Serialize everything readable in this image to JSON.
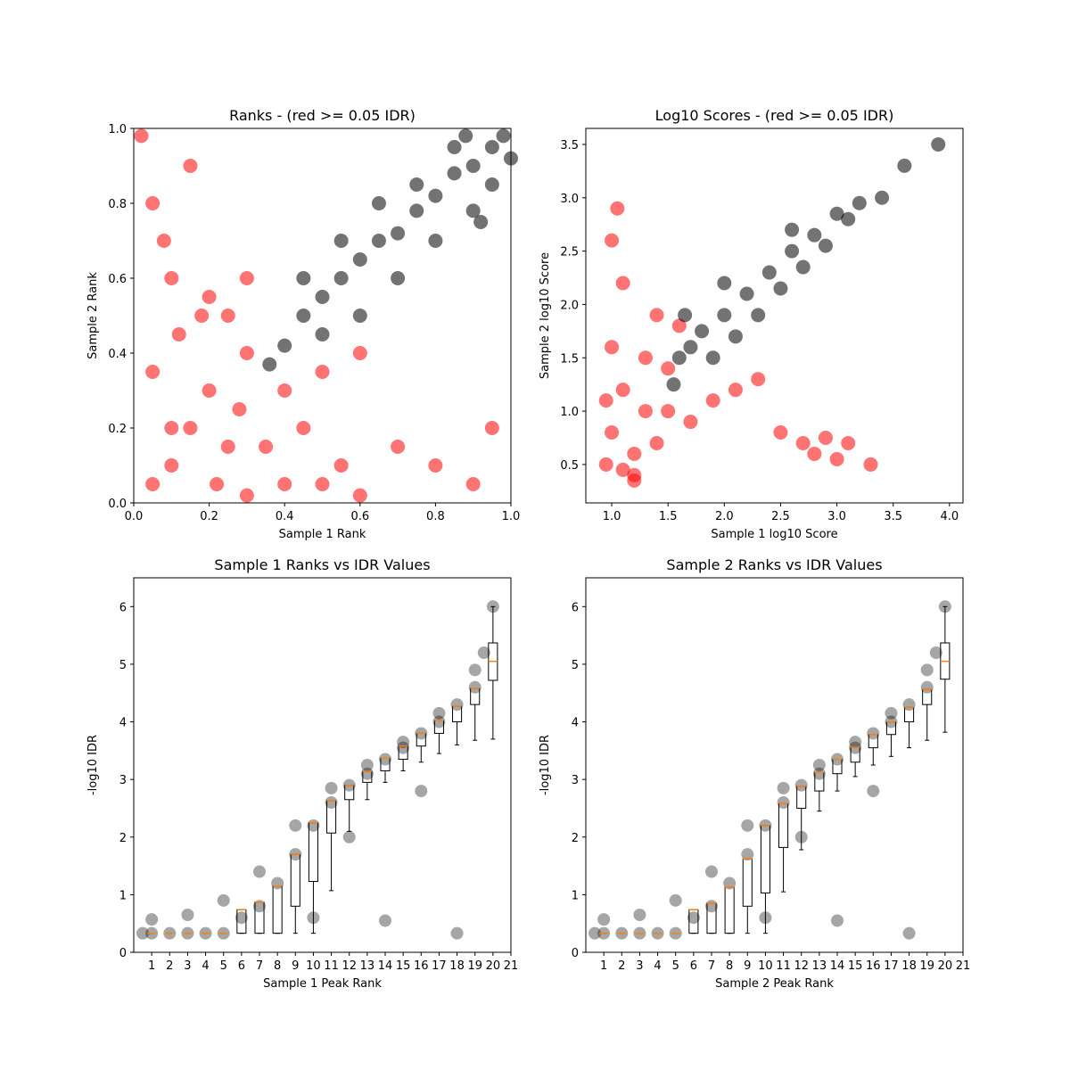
{
  "chart_data": [
    {
      "type": "scatter",
      "title": "Ranks - (red >= 0.05 IDR)",
      "x_label": "Sample 1 Rank",
      "y_label": "Sample 2 Rank",
      "xlim": [
        0,
        1
      ],
      "ylim": [
        0,
        1
      ],
      "xticks": [
        {
          "value": 0,
          "label": "0.0"
        },
        0.2,
        0.4,
        0.6,
        0.8,
        {
          "value": 1,
          "label": "1.0"
        }
      ],
      "yticks": [
        {
          "value": 0,
          "label": "0.0"
        },
        0.2,
        0.4,
        0.6,
        0.8,
        {
          "value": 1,
          "label": "1.0"
        }
      ],
      "series": [
        {
          "color": "#ff0000",
          "x": [
            0.05,
            0.1,
            0.15,
            0.2,
            0.25,
            0.3,
            0.05,
            0.12,
            0.18,
            0.22,
            0.28,
            0.35,
            0.4,
            0.45,
            0.5,
            0.55,
            0.6,
            0.08,
            0.15,
            0.3,
            0.02,
            0.1,
            0.2,
            0.8,
            0.9,
            0.95,
            0.7,
            0.3,
            0.25,
            0.4,
            0.5,
            0.1,
            0.05,
            0.6
          ],
          "y": [
            0.05,
            0.1,
            0.2,
            0.3,
            0.15,
            0.4,
            0.35,
            0.45,
            0.5,
            0.05,
            0.25,
            0.15,
            0.3,
            0.2,
            0.35,
            0.1,
            0.4,
            0.7,
            0.9,
            0.6,
            0.98,
            0.2,
            0.55,
            0.1,
            0.05,
            0.2,
            0.15,
            0.02,
            0.5,
            0.05,
            0.05,
            0.6,
            0.8,
            0.02
          ]
        },
        {
          "color": "#000000",
          "x": [
            0.36,
            0.4,
            0.45,
            0.5,
            0.55,
            0.6,
            0.65,
            0.7,
            0.75,
            0.8,
            0.85,
            0.9,
            0.95,
            0.98,
            0.5,
            0.6,
            0.7,
            0.8,
            0.9,
            0.55,
            0.65,
            0.75,
            0.85,
            0.95,
            1.0,
            0.45,
            0.88,
            0.92
          ],
          "y": [
            0.37,
            0.42,
            0.5,
            0.55,
            0.6,
            0.65,
            0.7,
            0.72,
            0.78,
            0.82,
            0.88,
            0.9,
            0.95,
            0.98,
            0.45,
            0.5,
            0.6,
            0.7,
            0.78,
            0.7,
            0.8,
            0.85,
            0.95,
            0.85,
            0.92,
            0.6,
            0.98,
            0.75
          ]
        }
      ]
    },
    {
      "type": "scatter",
      "title": "Log10 Scores - (red >= 0.05 IDR)",
      "x_label": "Sample 1 log10 Score",
      "y_label": "Sample 2 log10 Score",
      "xlim": [
        0.77,
        4.12
      ],
      "ylim": [
        0.14,
        3.65
      ],
      "xticks": [
        {
          "value": 1,
          "label": "1.0"
        },
        1.5,
        {
          "value": 2,
          "label": "2.0"
        },
        2.5,
        {
          "value": 3,
          "label": "3.0"
        },
        3.5,
        {
          "value": 4,
          "label": "4.0"
        }
      ],
      "yticks": [
        0.5,
        {
          "value": 1,
          "label": "1.0"
        },
        1.5,
        {
          "value": 2,
          "label": "2.0"
        },
        2.5,
        {
          "value": 3,
          "label": "3.0"
        },
        3.5
      ],
      "series": [
        {
          "color": "#ff0000",
          "x": [
            0.95,
            1.0,
            1.1,
            1.2,
            1.3,
            1.4,
            1.5,
            1.6,
            1.0,
            1.1,
            1.2,
            1.3,
            1.5,
            1.7,
            1.9,
            2.1,
            2.3,
            2.7,
            2.8,
            2.9,
            3.0,
            3.1,
            1.0,
            1.05,
            1.1,
            1.2,
            0.95,
            1.4,
            3.3,
            2.5
          ],
          "y": [
            0.5,
            0.8,
            1.2,
            0.6,
            1.0,
            0.7,
            1.4,
            1.8,
            1.6,
            2.2,
            0.4,
            1.5,
            1.0,
            0.9,
            1.1,
            1.2,
            1.3,
            0.7,
            0.6,
            0.75,
            0.55,
            0.7,
            2.6,
            2.9,
            0.45,
            0.35,
            1.1,
            1.9,
            0.5,
            0.8
          ]
        },
        {
          "color": "#000000",
          "x": [
            1.55,
            1.6,
            1.7,
            1.8,
            2.0,
            2.2,
            2.4,
            2.6,
            2.8,
            3.0,
            3.2,
            3.4,
            1.9,
            2.1,
            2.3,
            2.5,
            2.7,
            2.9,
            3.1,
            3.6,
            3.9,
            1.65,
            2.0,
            2.6
          ],
          "y": [
            1.25,
            1.5,
            1.6,
            1.75,
            1.9,
            2.1,
            2.3,
            2.5,
            2.65,
            2.85,
            2.95,
            3.0,
            1.5,
            1.7,
            1.9,
            2.15,
            2.35,
            2.55,
            2.8,
            3.3,
            3.5,
            1.9,
            2.2,
            2.7
          ]
        }
      ]
    },
    {
      "type": "box",
      "title": "Sample 1 Ranks vs IDR Values",
      "x_label": "Sample 1 Peak Rank",
      "y_label": "-log10 IDR",
      "xlim": [
        0,
        21
      ],
      "ylim": [
        0,
        6.5
      ],
      "xticks": [
        1,
        2,
        3,
        4,
        5,
        6,
        7,
        8,
        9,
        10,
        11,
        12,
        13,
        14,
        15,
        16,
        17,
        18,
        19,
        20,
        21
      ],
      "yticks": [
        0,
        1,
        2,
        3,
        4,
        5,
        6
      ],
      "series": [
        {
          "color": "#000000",
          "x": [
            0.5,
            1,
            2,
            3,
            4,
            5,
            6,
            7,
            8,
            9,
            10,
            11,
            12,
            13,
            14,
            15,
            16,
            17,
            18,
            19,
            19.5,
            20,
            1,
            3,
            5,
            7,
            9,
            11,
            13,
            15,
            17,
            19,
            10,
            14,
            18,
            12,
            16
          ],
          "y": [
            0.33,
            0.33,
            0.33,
            0.33,
            0.33,
            0.33,
            0.6,
            0.8,
            1.2,
            1.7,
            2.2,
            2.6,
            2.9,
            3.1,
            3.35,
            3.55,
            3.8,
            4.0,
            4.3,
            4.6,
            5.2,
            6.0,
            0.57,
            0.65,
            0.9,
            1.4,
            2.2,
            2.85,
            3.25,
            3.65,
            4.15,
            4.9,
            0.6,
            0.55,
            0.33,
            2.0,
            2.8
          ]
        }
      ],
      "box_positions": [
        1,
        2,
        3,
        4,
        5,
        6,
        7,
        8,
        9,
        10,
        11,
        12,
        13,
        14,
        15,
        16,
        17,
        18,
        19,
        20
      ],
      "medians": [
        0.33,
        0.33,
        0.33,
        0.33,
        0.33,
        0.74,
        0.87,
        1.15,
        1.7,
        2.25,
        2.63,
        2.9,
        3.14,
        3.37,
        3.58,
        3.8,
        4.02,
        4.27,
        4.58,
        5.05
      ],
      "q1": [
        0.33,
        0.33,
        0.33,
        0.33,
        0.33,
        0.33,
        0.33,
        0.33,
        0.8,
        1.23,
        2.07,
        2.65,
        2.95,
        3.15,
        3.35,
        3.58,
        3.8,
        4.0,
        4.3,
        4.72
      ],
      "q3": [
        0.33,
        0.33,
        0.33,
        0.33,
        0.33,
        0.74,
        0.87,
        1.15,
        1.7,
        2.25,
        2.63,
        2.9,
        3.14,
        3.37,
        3.58,
        3.8,
        4.02,
        4.27,
        4.58,
        5.37
      ],
      "whisker_low": [
        0.33,
        0.33,
        0.33,
        0.33,
        0.33,
        0.33,
        0.33,
        0.33,
        0.33,
        0.33,
        1.07,
        2.1,
        2.65,
        2.95,
        3.15,
        3.3,
        3.45,
        3.6,
        3.68,
        3.7
      ],
      "whisker_high": [
        0.33,
        0.33,
        0.33,
        0.33,
        0.33,
        0.74,
        0.87,
        1.15,
        1.7,
        2.25,
        2.63,
        2.9,
        3.14,
        3.37,
        3.58,
        3.8,
        4.02,
        4.27,
        4.58,
        6.0
      ],
      "box_color": "#000000",
      "median_color": "#ff7f0e"
    },
    {
      "type": "box",
      "title": "Sample 2 Ranks vs IDR Values",
      "x_label": "Sample 2 Peak Rank",
      "y_label": "-log10 IDR",
      "xlim": [
        0,
        21
      ],
      "ylim": [
        0,
        6.5
      ],
      "xticks": [
        1,
        2,
        3,
        4,
        5,
        6,
        7,
        8,
        9,
        10,
        11,
        12,
        13,
        14,
        15,
        16,
        17,
        18,
        19,
        20,
        21
      ],
      "yticks": [
        0,
        1,
        2,
        3,
        4,
        5,
        6
      ],
      "series": [
        {
          "color": "#000000",
          "x": [
            0.5,
            1,
            2,
            3,
            4,
            5,
            6,
            7,
            8,
            9,
            10,
            11,
            12,
            13,
            14,
            15,
            16,
            17,
            18,
            19,
            19.5,
            20,
            1,
            3,
            5,
            7,
            9,
            11,
            13,
            15,
            17,
            19,
            10,
            14,
            18,
            12,
            16
          ],
          "y": [
            0.33,
            0.33,
            0.33,
            0.33,
            0.33,
            0.33,
            0.6,
            0.8,
            1.2,
            1.7,
            2.2,
            2.6,
            2.9,
            3.1,
            3.35,
            3.55,
            3.8,
            4.0,
            4.3,
            4.6,
            5.2,
            6.0,
            0.57,
            0.65,
            0.9,
            1.4,
            2.2,
            2.85,
            3.25,
            3.65,
            4.15,
            4.9,
            0.6,
            0.55,
            0.33,
            2.0,
            2.8
          ]
        }
      ],
      "box_positions": [
        1,
        2,
        3,
        4,
        5,
        6,
        7,
        8,
        9,
        10,
        11,
        12,
        13,
        14,
        15,
        16,
        17,
        18,
        19,
        20
      ],
      "medians": [
        0.33,
        0.33,
        0.33,
        0.33,
        0.33,
        0.74,
        0.85,
        1.13,
        1.62,
        2.2,
        2.58,
        2.88,
        3.12,
        3.35,
        3.56,
        3.78,
        4.0,
        4.25,
        4.56,
        5.05
      ],
      "q1": [
        0.33,
        0.33,
        0.33,
        0.33,
        0.33,
        0.33,
        0.33,
        0.33,
        0.8,
        1.03,
        1.82,
        2.5,
        2.8,
        3.1,
        3.3,
        3.55,
        3.78,
        4.0,
        4.3,
        4.74
      ],
      "q3": [
        0.33,
        0.33,
        0.33,
        0.33,
        0.33,
        0.74,
        0.85,
        1.13,
        1.62,
        2.2,
        2.58,
        2.88,
        3.12,
        3.35,
        3.56,
        3.78,
        4.0,
        4.25,
        4.56,
        5.37
      ],
      "whisker_low": [
        0.33,
        0.33,
        0.33,
        0.33,
        0.33,
        0.33,
        0.33,
        0.33,
        0.33,
        0.33,
        1.05,
        1.78,
        2.45,
        2.8,
        3.05,
        3.25,
        3.4,
        3.55,
        3.68,
        3.82
      ],
      "whisker_high": [
        0.33,
        0.33,
        0.33,
        0.33,
        0.33,
        0.74,
        0.85,
        1.13,
        1.62,
        2.2,
        2.58,
        2.88,
        3.12,
        3.35,
        3.56,
        3.78,
        4.0,
        4.25,
        4.56,
        6.0
      ],
      "box_color": "#000000",
      "median_color": "#ff7f0e"
    }
  ]
}
